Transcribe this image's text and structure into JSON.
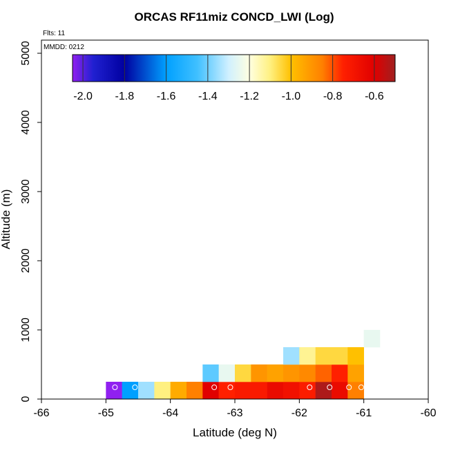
{
  "chart_data": {
    "type": "heatmap",
    "title": "ORCAS RF11miz CONCD_LWI (Log)",
    "x_label": "Latitude (deg N)",
    "y_label": "Altitude (m)",
    "annotations": [
      "Flts: 11",
      "MMDD: 0212"
    ],
    "xlim": [
      -66,
      -60
    ],
    "xticks": [
      -66,
      -65,
      -64,
      -63,
      -62,
      -61,
      -60
    ],
    "ylim": [
      0,
      5190
    ],
    "yticks": [
      0,
      1000,
      2000,
      3000,
      4000,
      5000
    ],
    "cells": {
      "x": [
        -64.875,
        -64.625,
        -64.375,
        -64.125,
        -63.875,
        -63.625,
        -63.375,
        -63.125,
        -62.875,
        -62.625,
        -62.375,
        -62.125,
        -61.875,
        -61.625,
        -61.375,
        -61.125,
        -63.375,
        -63.125,
        -62.875,
        -62.625,
        -62.375,
        -62.125,
        -61.875,
        -61.625,
        -61.375,
        -61.125,
        -62.125,
        -61.875,
        -61.625,
        -61.375,
        -61.125,
        -60.875
      ],
      "y": [
        125,
        125,
        125,
        125,
        125,
        125,
        125,
        125,
        125,
        125,
        125,
        125,
        125,
        125,
        125,
        125,
        375,
        375,
        375,
        375,
        375,
        375,
        375,
        375,
        375,
        375,
        625,
        625,
        625,
        625,
        625,
        875
      ],
      "values": [
        -2.1,
        -1.6,
        -1.35,
        -1.1,
        -0.95,
        -0.85,
        -0.6,
        -0.75,
        -0.72,
        -0.72,
        -0.65,
        -0.68,
        -0.73,
        -0.52,
        -0.65,
        -0.85,
        -1.42,
        -1.25,
        -1.05,
        -0.9,
        -0.93,
        -0.9,
        -0.87,
        -0.82,
        -0.75,
        -0.93,
        -1.35,
        -1.12,
        -1.05,
        -1.05,
        -1.0,
        -1.25
      ]
    },
    "points": {
      "x": [
        -64.86,
        -64.55,
        -63.32,
        -63.07,
        -61.84,
        -61.53,
        -61.23,
        -61.04
      ],
      "y": [
        170,
        170,
        170,
        170,
        170,
        170,
        170,
        170
      ]
    },
    "colormap": {
      "values": [
        -2.05,
        -1.95,
        -1.8,
        -1.6,
        -1.45,
        -1.3,
        -1.2,
        -1.1,
        -1.0,
        -0.85,
        -0.75,
        -0.6,
        -0.5
      ],
      "colors": [
        "#9020f0",
        "#2020d0",
        "#0000a0",
        "#00a0ff",
        "#40c0ff",
        "#d0f0ff",
        "#ffffe0",
        "#fff080",
        "#ffc000",
        "#ff8000",
        "#ff2000",
        "#e00000",
        "#a02020"
      ]
    },
    "colorbar_lim": [
      -2.05,
      -0.5
    ],
    "colorbar_ticks": [
      {
        "value": -2.0,
        "label": "-2.0"
      },
      {
        "value": -1.8,
        "label": "-1.8"
      },
      {
        "value": -1.6,
        "label": "-1.6"
      },
      {
        "value": -1.4,
        "label": "-1.4"
      },
      {
        "value": -1.2,
        "label": "-1.2"
      },
      {
        "value": -1.0,
        "label": "-1.0"
      },
      {
        "value": -0.8,
        "label": "-0.8"
      },
      {
        "value": -0.6,
        "label": "-0.6"
      }
    ]
  }
}
